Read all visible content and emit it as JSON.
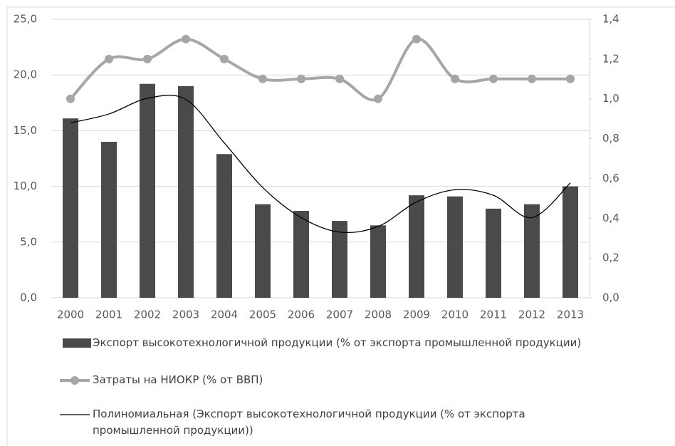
{
  "chart_data": {
    "type": "bar",
    "categories": [
      "2000",
      "2001",
      "2002",
      "2003",
      "2004",
      "2005",
      "2006",
      "2007",
      "2008",
      "2009",
      "2010",
      "2011",
      "2012",
      "2013"
    ],
    "series": [
      {
        "name": "Экспорт высокотехнологичной продукции (% от экспорта промышленной продукции)",
        "type": "bar",
        "color": "#4a4a4a",
        "values": [
          16.1,
          14.0,
          19.2,
          19.0,
          12.9,
          8.4,
          7.8,
          6.9,
          6.5,
          9.2,
          9.1,
          8.0,
          8.4,
          10.0
        ]
      },
      {
        "name": "Затраты на НИОКР (% от ВВП)",
        "type": "line",
        "axis": "y2",
        "color": "#a6a6a6",
        "smooth": true,
        "markers": true,
        "values": [
          1.0,
          1.2,
          1.2,
          1.3,
          1.2,
          1.1,
          1.1,
          1.1,
          1.0,
          1.3,
          1.1,
          1.1,
          1.1,
          1.1
        ]
      },
      {
        "name": "Полиномиальная (Экспорт высокотехнологичной продукции (% от экспорта промышленной продукции))",
        "type": "line",
        "color": "#000000",
        "smooth": true,
        "markers": false,
        "values": [
          15.7,
          16.5,
          17.9,
          17.8,
          13.9,
          9.9,
          7.2,
          5.9,
          6.4,
          8.6,
          9.7,
          9.2,
          7.2,
          10.3
        ]
      }
    ],
    "ylim": [
      0,
      25
    ],
    "yticks": [
      {
        "value": 0,
        "label": "0,0"
      },
      {
        "value": 5,
        "label": "5,0"
      },
      {
        "value": 10,
        "label": "10,0"
      },
      {
        "value": 15,
        "label": "15,0"
      },
      {
        "value": 20,
        "label": "20,0"
      },
      {
        "value": 25,
        "label": "25,0"
      }
    ],
    "y2lim": [
      0,
      1.4
    ],
    "y2ticks": [
      {
        "value": 0,
        "label": "0,0"
      },
      {
        "value": 0.2,
        "label": "0,2"
      },
      {
        "value": 0.4,
        "label": "0,4"
      },
      {
        "value": 0.6,
        "label": "0,6"
      },
      {
        "value": 0.8,
        "label": "0,8"
      },
      {
        "value": 1.0,
        "label": "1,0"
      },
      {
        "value": 1.2,
        "label": "1,2"
      },
      {
        "value": 1.4,
        "label": "1,4"
      }
    ],
    "grid": true,
    "legend": "bottom"
  }
}
